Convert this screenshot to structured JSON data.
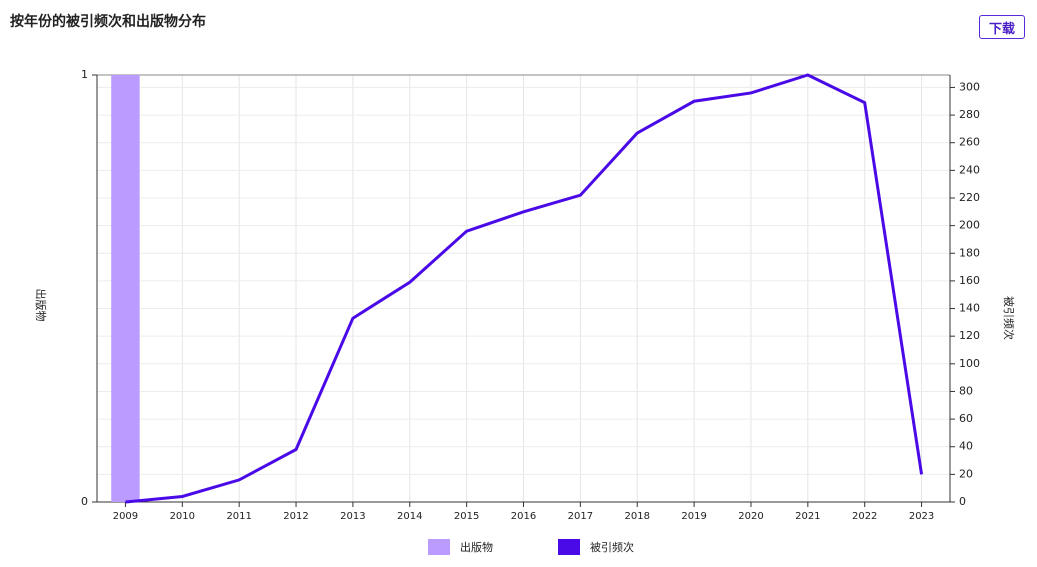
{
  "toolbar": {
    "download": "下载"
  },
  "chart_data": {
    "type": "combo",
    "title": "按年份的被引频次和出版物分布",
    "categories": [
      "2009",
      "2010",
      "2011",
      "2012",
      "2013",
      "2014",
      "2015",
      "2016",
      "2017",
      "2018",
      "2019",
      "2020",
      "2021",
      "2022",
      "2023"
    ],
    "series": [
      {
        "name": "出版物",
        "type": "bar",
        "axis": "y",
        "color": "#bb9bff",
        "values": [
          1,
          0,
          0,
          0,
          0,
          0,
          0,
          0,
          0,
          0,
          0,
          0,
          0,
          0,
          0
        ]
      },
      {
        "name": "被引频次",
        "type": "line",
        "axis": "y2",
        "color": "#4a0ae8",
        "values": [
          0,
          4,
          16,
          38,
          133,
          159,
          196,
          210,
          222,
          267,
          290,
          296,
          309,
          289,
          20
        ]
      }
    ],
    "ylabel": "出版物",
    "y2label": "被引频次",
    "ylim": [
      0,
      1
    ],
    "yticks": [
      0,
      1
    ],
    "y2lim": [
      0,
      309
    ],
    "y2ticks": [
      0,
      20,
      40,
      60,
      80,
      100,
      120,
      140,
      160,
      180,
      200,
      220,
      240,
      260,
      280,
      300
    ],
    "grid": true,
    "legend": "bottom"
  }
}
